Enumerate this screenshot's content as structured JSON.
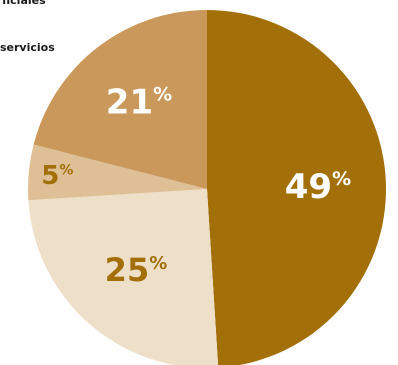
{
  "chart_data": {
    "type": "pie",
    "legend": [
      "ficiales",
      "servicios"
    ],
    "slices": [
      {
        "value": 49,
        "label": "49",
        "color": "#a36f08",
        "text_color": "#ffffff"
      },
      {
        "value": 25,
        "label": "25",
        "color": "#eedfc9",
        "text_color": "#a36f08"
      },
      {
        "value": 5,
        "label": "5",
        "color": "#dfc096",
        "text_color": "#a36f08"
      },
      {
        "value": 21,
        "label": "21",
        "color": "#c9985a",
        "text_color": "#ffffff"
      }
    ],
    "percent_sign": "%"
  }
}
